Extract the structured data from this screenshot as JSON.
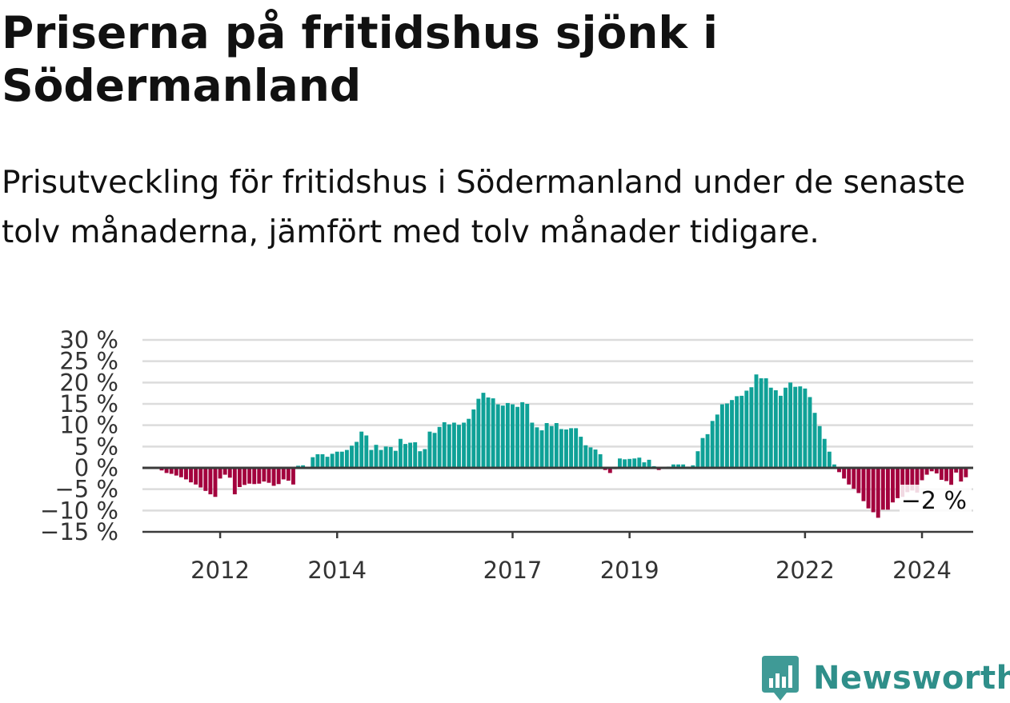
{
  "title": "Priserna på fritidshus sjönk i Södermanland",
  "subtitle": "Prisutveckling för fritidshus i Södermanland under de senaste tolv månaderna, jämfört med tolv månader tidigare.",
  "brand": {
    "name": "Newsworthy",
    "color": "#2f8f8a",
    "icon": "newsworthy-logo-icon"
  },
  "chart_data": {
    "type": "bar",
    "x_start": "2011-01",
    "x_interval": "month",
    "ylim": [
      -15,
      30
    ],
    "y_ticks": [
      30,
      25,
      20,
      15,
      10,
      5,
      0,
      -5,
      -10,
      -15
    ],
    "y_tick_labels": [
      "30 %",
      "25 %",
      "20 %",
      "15 %",
      "10 %",
      "5 %",
      "0 %",
      "−5 %",
      "−10 %",
      "−15 %"
    ],
    "x_tick_labels": [
      {
        "label": "2012",
        "date": "2012-01"
      },
      {
        "label": "2014",
        "date": "2014-01"
      },
      {
        "label": "2017",
        "date": "2017-01"
      },
      {
        "label": "2019",
        "date": "2019-01"
      },
      {
        "label": "2022",
        "date": "2022-01"
      },
      {
        "label": "2024",
        "date": "2024-01"
      }
    ],
    "end_label": "−2 %",
    "grid": true,
    "colors": {
      "positive": "#0fa197",
      "negative": "#a3003d",
      "grid": "#dcdcdc",
      "axis": "#3a3a3a"
    },
    "values": [
      -0.6,
      -1.2,
      -1.4,
      -1.8,
      -2.2,
      -2.7,
      -3.4,
      -3.9,
      -4.6,
      -5.4,
      -6.2,
      -6.8,
      -2.5,
      -1.6,
      -2.3,
      -6.2,
      -4.5,
      -4.0,
      -3.7,
      -3.8,
      -3.7,
      -3.2,
      -3.5,
      -4.2,
      -3.8,
      -2.7,
      -3.0,
      -3.9,
      0.5,
      0.6,
      0.2,
      2.5,
      3.2,
      3.2,
      2.6,
      3.3,
      3.8,
      3.8,
      4.2,
      5.2,
      6.1,
      8.5,
      7.6,
      4.2,
      5.4,
      4.2,
      5.0,
      4.9,
      4.0,
      6.8,
      5.6,
      5.9,
      6.0,
      3.9,
      4.4,
      8.5,
      8.2,
      9.6,
      10.7,
      10.2,
      10.6,
      10.1,
      10.6,
      11.5,
      13.7,
      16.2,
      17.6,
      16.5,
      16.3,
      14.9,
      14.6,
      15.2,
      14.9,
      14.3,
      15.4,
      15.0,
      10.6,
      9.5,
      8.8,
      10.5,
      9.8,
      10.5,
      9.1,
      9.0,
      9.3,
      9.3,
      7.3,
      5.3,
      4.8,
      4.3,
      3.2,
      -0.5,
      -1.2,
      -0.3,
      2.2,
      2.0,
      2.1,
      2.2,
      2.4,
      1.3,
      1.9,
      0.4,
      -0.5,
      -0.2,
      0.3,
      0.8,
      0.8,
      0.8,
      0.3,
      0.6,
      3.9,
      7.0,
      7.9,
      11.0,
      12.5,
      14.9,
      15.1,
      15.9,
      16.8,
      16.9,
      18.1,
      18.9,
      21.9,
      21.0,
      21.0,
      18.8,
      18.2,
      16.9,
      18.8,
      20.0,
      19.0,
      19.1,
      18.6,
      16.6,
      12.9,
      9.8,
      6.8,
      3.8,
      0.8,
      -1.0,
      -2.5,
      -3.9,
      -4.9,
      -5.9,
      -7.8,
      -9.5,
      -10.4,
      -11.7,
      -9.8,
      -9.8,
      -8.1,
      -7.1,
      -6.8,
      -5.7,
      -5.3,
      -5.8,
      -2.9,
      -1.6,
      -0.8,
      -1.3,
      -2.8,
      -3.1,
      -4.2,
      -1.1,
      -3.2,
      -2.2
    ]
  }
}
